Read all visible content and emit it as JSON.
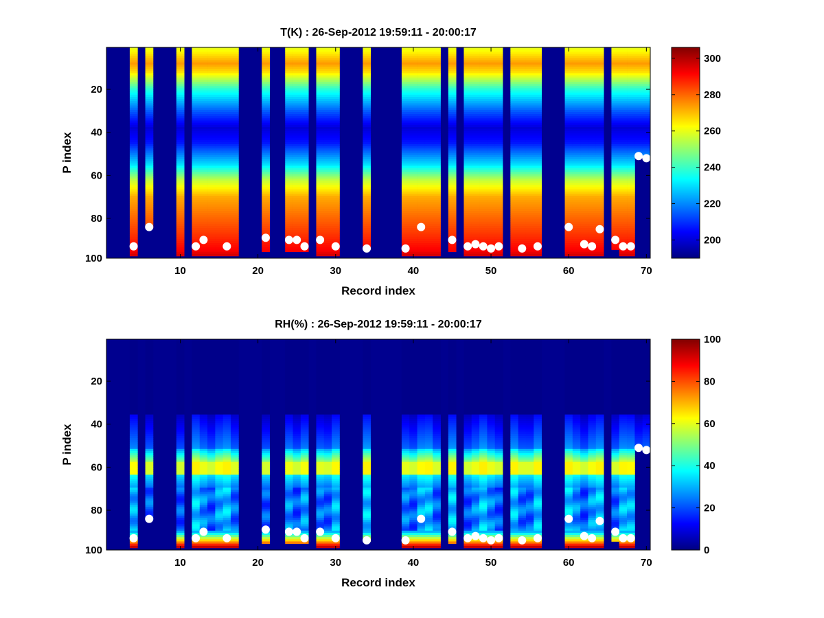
{
  "chart_data": [
    {
      "type": "heatmap",
      "title": "T(K) : 26-Sep-2012 19:59:11 - 20:00:17",
      "xlabel": "Record index",
      "ylabel": "P index",
      "xlim": [
        0.5,
        70.5
      ],
      "ylim": [
        0.5,
        98.5
      ],
      "y_reversed": true,
      "xticks": [
        "10",
        "20",
        "30",
        "40",
        "50",
        "60",
        "70"
      ],
      "yticks": [
        "20",
        "40",
        "60",
        "80",
        "100"
      ],
      "colormap": "jet",
      "clim": [
        190,
        306
      ],
      "colorbar_ticks": [
        "200",
        "220",
        "240",
        "260",
        "280",
        "300"
      ],
      "profile_records": [
        4,
        6,
        10,
        12,
        13,
        14,
        15,
        16,
        17,
        21,
        24,
        25,
        26,
        28,
        29,
        30,
        34,
        39,
        40,
        41,
        42,
        43,
        45,
        47,
        48,
        49,
        50,
        51,
        53,
        54,
        55,
        56,
        60,
        61,
        62,
        63,
        64,
        66,
        67,
        68,
        69,
        70
      ],
      "profile_bottom_index": [
        97,
        84,
        97,
        97,
        97,
        97,
        97,
        97,
        97,
        95,
        95,
        95,
        95,
        97,
        97,
        97,
        94,
        97,
        97,
        97,
        97,
        97,
        95,
        97,
        97,
        97,
        97,
        97,
        97,
        97,
        97,
        97,
        97,
        97,
        97,
        97,
        97,
        94,
        97,
        97,
        51,
        52
      ],
      "markers": {
        "x": [
          4,
          6,
          12,
          13,
          16,
          21,
          24,
          25,
          26,
          28,
          30,
          34,
          39,
          41,
          45,
          47,
          48,
          49,
          50,
          51,
          54,
          56,
          60,
          62,
          63,
          64,
          66,
          67,
          68,
          69,
          70
        ],
        "y": [
          93,
          84,
          93,
          90,
          93,
          89,
          90,
          90,
          93,
          90,
          93,
          94,
          94,
          84,
          90,
          93,
          92,
          93,
          94,
          93,
          94,
          93,
          84,
          92,
          93,
          85,
          90,
          93,
          93,
          51,
          52
        ]
      }
    },
    {
      "type": "heatmap",
      "title": "RH(%) : 26-Sep-2012 19:59:11 - 20:00:17",
      "xlabel": "Record index",
      "ylabel": "P index",
      "xlim": [
        0.5,
        70.5
      ],
      "ylim": [
        0.5,
        98.5
      ],
      "y_reversed": true,
      "xticks": [
        "10",
        "20",
        "30",
        "40",
        "50",
        "60",
        "70"
      ],
      "yticks": [
        "20",
        "40",
        "60",
        "80",
        "100"
      ],
      "colormap": "jet",
      "clim": [
        0,
        100
      ],
      "colorbar_ticks": [
        "0",
        "20",
        "40",
        "60",
        "80",
        "100"
      ],
      "profile_records": [
        4,
        6,
        10,
        12,
        13,
        14,
        15,
        16,
        17,
        21,
        24,
        25,
        26,
        28,
        29,
        30,
        34,
        39,
        40,
        41,
        42,
        43,
        45,
        47,
        48,
        49,
        50,
        51,
        53,
        54,
        55,
        56,
        60,
        61,
        62,
        63,
        64,
        66,
        67,
        68,
        69,
        70
      ],
      "profile_bottom_index": [
        97,
        84,
        97,
        97,
        97,
        97,
        97,
        97,
        97,
        95,
        95,
        95,
        95,
        97,
        97,
        97,
        94,
        97,
        97,
        97,
        97,
        97,
        95,
        97,
        97,
        97,
        97,
        97,
        97,
        97,
        97,
        97,
        97,
        97,
        97,
        97,
        97,
        94,
        97,
        97,
        51,
        52
      ],
      "markers": {
        "x": [
          4,
          6,
          12,
          13,
          16,
          21,
          24,
          25,
          26,
          28,
          30,
          34,
          39,
          41,
          45,
          47,
          48,
          49,
          50,
          51,
          54,
          56,
          60,
          62,
          63,
          64,
          66,
          67,
          68,
          69,
          70
        ],
        "y": [
          93,
          84,
          93,
          90,
          93,
          89,
          90,
          90,
          93,
          90,
          93,
          94,
          94,
          84,
          90,
          93,
          92,
          93,
          94,
          93,
          94,
          93,
          84,
          92,
          93,
          85,
          90,
          93,
          93,
          51,
          52
        ]
      }
    }
  ]
}
